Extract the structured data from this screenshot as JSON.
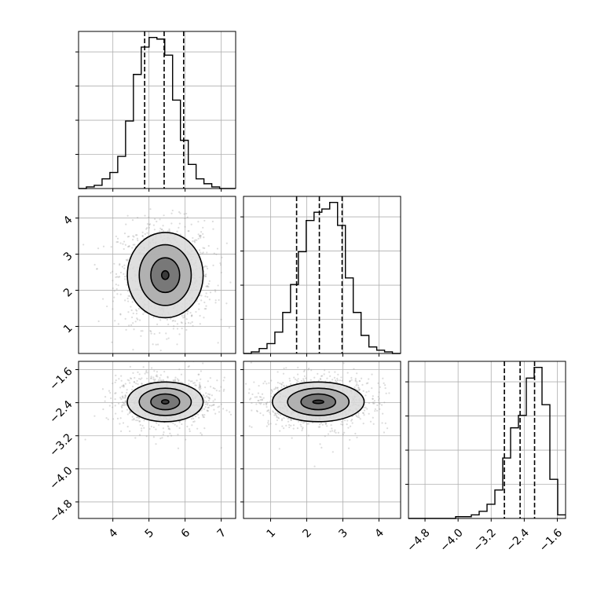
{
  "chart_data": {
    "type": "corner",
    "title": "",
    "parameters": [
      "",
      "",
      ""
    ],
    "grid": true,
    "parameter_ranges": [
      [
        3.05,
        7.4
      ],
      [
        0.25,
        4.6
      ],
      [
        -5.2,
        -1.4
      ]
    ],
    "tick_labels": [
      [
        "4",
        "5",
        "6",
        "7"
      ],
      [
        "1",
        "2",
        "3",
        "4"
      ],
      [
        "−4.8",
        "−4.0",
        "−3.2",
        "−2.4",
        "−1.6"
      ]
    ],
    "tick_values": [
      [
        4,
        5,
        6,
        7
      ],
      [
        1,
        2,
        3,
        4
      ],
      [
        -4.8,
        -4.0,
        -3.2,
        -2.4,
        -1.6
      ]
    ],
    "quantile_lines": [
      [
        4.88,
        5.42,
        5.96
      ],
      [
        1.72,
        2.35,
        2.98
      ],
      [
        -2.88,
        -2.5,
        -2.15
      ]
    ],
    "histograms": [
      {
        "edges_min": 3.05,
        "bin_width": 0.217,
        "values": [
          0,
          1,
          2,
          6,
          10,
          20,
          42,
          71,
          88,
          94,
          93,
          83,
          55,
          30,
          15,
          6,
          3,
          1,
          0,
          0
        ]
      },
      {
        "edges_min": 0.25,
        "bin_width": 0.217,
        "values": [
          0,
          1,
          3,
          6,
          13,
          25,
          42,
          62,
          81,
          86,
          88,
          92,
          78,
          46,
          25,
          11,
          4,
          2,
          1,
          0
        ]
      },
      {
        "edges_min": -5.2,
        "bin_width": 0.19,
        "values": [
          0,
          0,
          0,
          0,
          0,
          0,
          1,
          1,
          2,
          4,
          8,
          16,
          34,
          51,
          58,
          79,
          85,
          64,
          22,
          2
        ]
      }
    ],
    "contours_2d": [
      {
        "x_param": 0,
        "y_param": 1,
        "center": [
          5.45,
          2.42
        ],
        "levels": [
          {
            "rx": 1.05,
            "ry": 1.18
          },
          {
            "rx": 0.72,
            "ry": 0.84
          },
          {
            "rx": 0.4,
            "ry": 0.48
          },
          {
            "rx": 0.1,
            "ry": 0.12
          }
        ]
      },
      {
        "x_param": 0,
        "y_param": 2,
        "center": [
          5.45,
          -2.38
        ],
        "levels": [
          {
            "rx": 1.05,
            "ry": 0.48
          },
          {
            "rx": 0.72,
            "ry": 0.33
          },
          {
            "rx": 0.4,
            "ry": 0.19
          },
          {
            "rx": 0.1,
            "ry": 0.05
          }
        ]
      },
      {
        "x_param": 1,
        "y_param": 2,
        "center": [
          2.32,
          -2.38
        ],
        "levels": [
          {
            "rx": 1.27,
            "ry": 0.48
          },
          {
            "rx": 0.85,
            "ry": 0.33
          },
          {
            "rx": 0.48,
            "ry": 0.19
          },
          {
            "rx": 0.15,
            "ry": 0.04
          }
        ]
      }
    ]
  }
}
